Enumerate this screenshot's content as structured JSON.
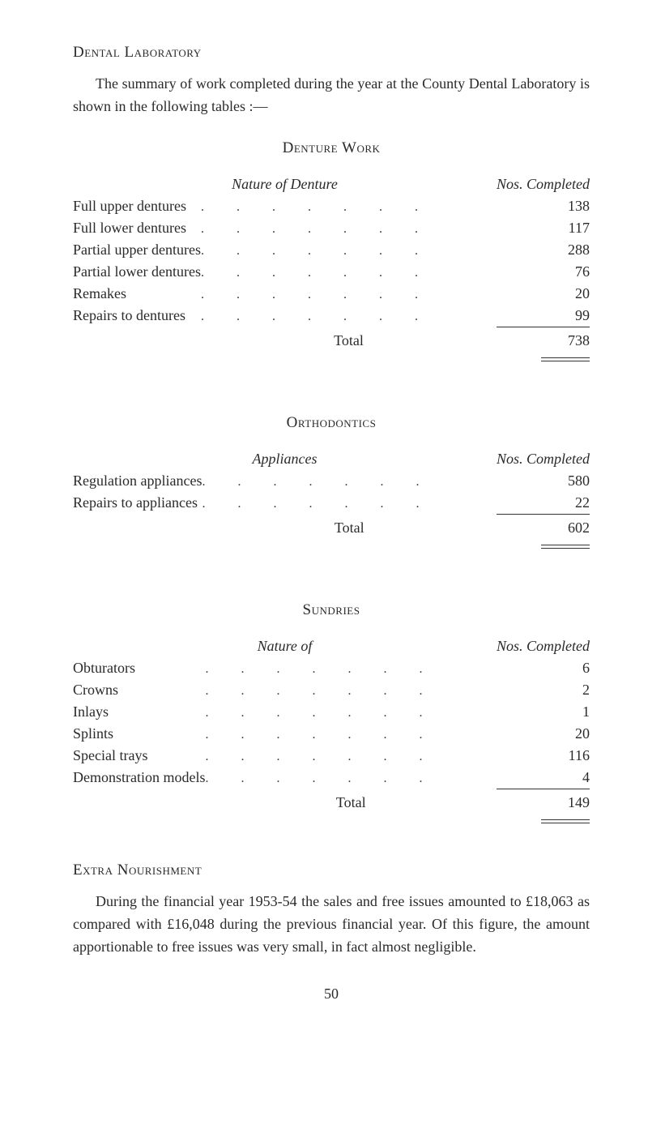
{
  "section_dental_lab": "Dental Laboratory",
  "dental_intro": "The summary of work completed during the year at the County Dental Laboratory is shown in the following tables :—",
  "denture_work": {
    "title": "Denture Work",
    "col_left": "Nature of Denture",
    "col_right": "Nos. Completed",
    "rows": [
      {
        "label": "Full upper dentures",
        "value": "138"
      },
      {
        "label": "Full lower dentures",
        "value": "117"
      },
      {
        "label": "Partial upper dentures",
        "value": "288"
      },
      {
        "label": "Partial lower dentures",
        "value": "76"
      },
      {
        "label": "Remakes",
        "value": "20"
      },
      {
        "label": "Repairs to dentures",
        "value": "99"
      }
    ],
    "total_label": "Total",
    "total_value": "738"
  },
  "orthodontics": {
    "title": "Orthodontics",
    "col_left": "Appliances",
    "col_right": "Nos. Completed",
    "rows": [
      {
        "label": "Regulation appliances",
        "value": "580"
      },
      {
        "label": "Repairs to appliances",
        "value": "22"
      }
    ],
    "total_label": "Total",
    "total_value": "602"
  },
  "sundries": {
    "title": "Sundries",
    "col_left": "Nature of",
    "col_right": "Nos. Completed",
    "rows": [
      {
        "label": "Obturators",
        "value": "6"
      },
      {
        "label": "Crowns",
        "value": "2"
      },
      {
        "label": "Inlays",
        "value": "1"
      },
      {
        "label": "Splints",
        "value": "20"
      },
      {
        "label": "Special trays",
        "value": "116"
      },
      {
        "label": "Demonstration models",
        "value": "4"
      }
    ],
    "total_label": "Total",
    "total_value": "149"
  },
  "section_extra": "Extra Nourishment",
  "extra_body": "During the financial year 1953-54 the sales and free issues amounted to £18,063 as compared with £16,048 during the previous financial year. Of this figure, the amount apportionable to free issues was very small, in fact almost negligible.",
  "folio": "50",
  "dot_run": ". . . . . . ."
}
